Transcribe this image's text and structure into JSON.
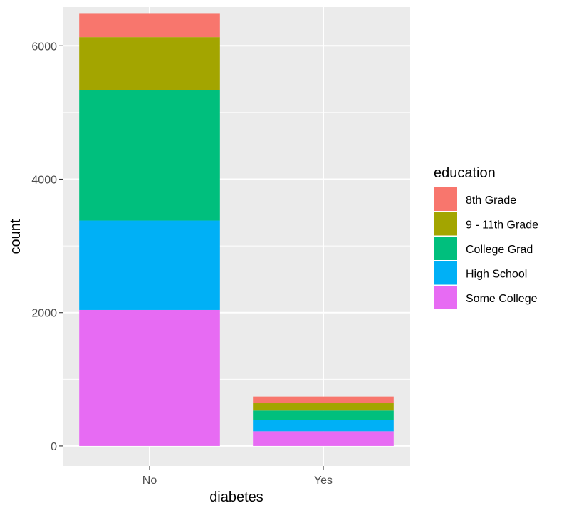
{
  "chart_data": {
    "type": "bar",
    "stacked": true,
    "title": "",
    "xlabel": "diabetes",
    "ylabel": "count",
    "categories": [
      "No",
      "Yes"
    ],
    "ylim": [
      -300,
      6580
    ],
    "yticks": [
      0,
      2000,
      4000,
      6000
    ],
    "ytick_labels": [
      "0",
      "2000",
      "4000",
      "6000"
    ],
    "grid": true,
    "legend": {
      "title": "education",
      "placement": "right"
    },
    "series": [
      {
        "name": "Some College",
        "color": "#E76BF3",
        "values": [
          2040,
          220
        ]
      },
      {
        "name": "High School",
        "color": "#00B0F6",
        "values": [
          1340,
          170
        ]
      },
      {
        "name": "College Grad",
        "color": "#00BF7D",
        "values": [
          1960,
          140
        ]
      },
      {
        "name": "9 - 11th Grade",
        "color": "#A3A500",
        "values": [
          790,
          110
        ]
      },
      {
        "name": "8th Grade",
        "color": "#F8766D",
        "values": [
          360,
          100
        ]
      }
    ],
    "legend_order": [
      "8th Grade",
      "9 - 11th Grade",
      "College Grad",
      "High School",
      "Some College"
    ]
  },
  "style": {
    "panel_background": "#EBEBEB",
    "grid_major": "#FFFFFF",
    "tick_color": "#333333"
  }
}
